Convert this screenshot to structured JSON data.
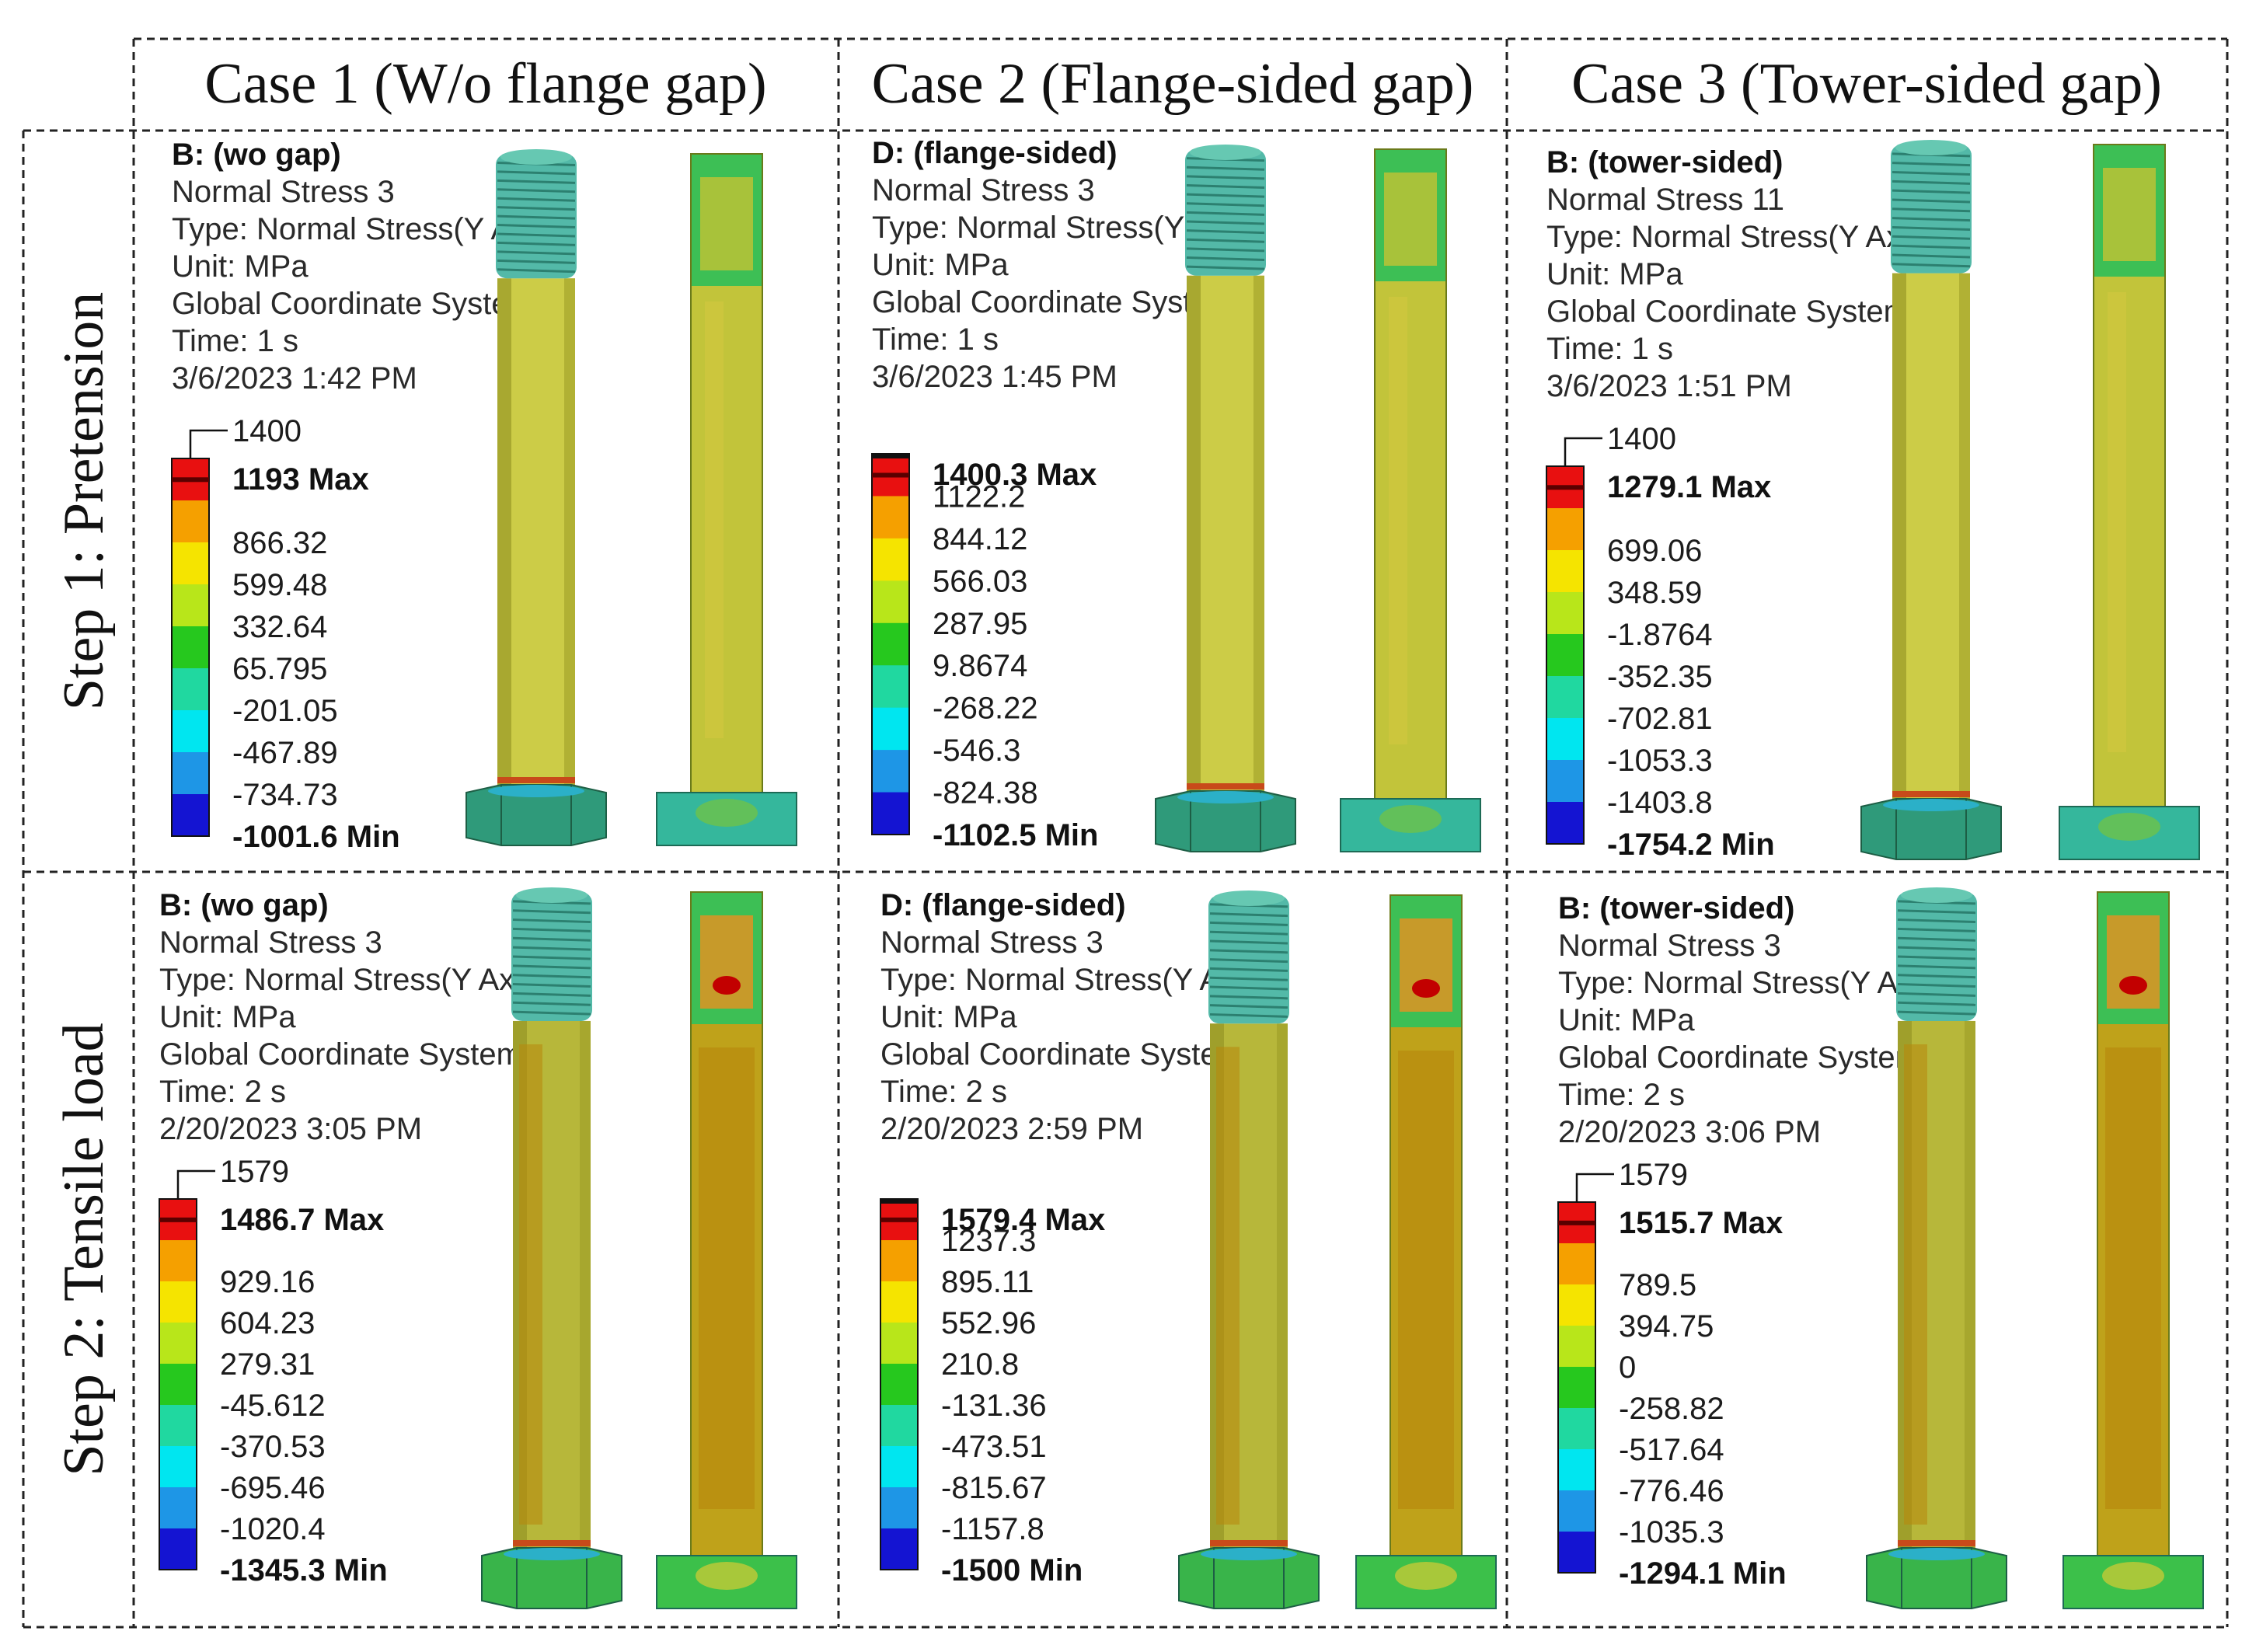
{
  "columns": [
    {
      "label": "Case 1 (W/o flange gap)"
    },
    {
      "label": "Case 2 (Flange-sided gap)"
    },
    {
      "label": "Case 3 (Tower-sided gap)"
    }
  ],
  "rows": [
    {
      "label": "Step 1: Pretension"
    },
    {
      "label": "Step 2: Tensile load"
    }
  ],
  "legend_colors": [
    "#e81010",
    "#f5a000",
    "#f5e400",
    "#b8e61a",
    "#26c81e",
    "#20d8a0",
    "#00e6f0",
    "#1e96e6",
    "#1414d2"
  ],
  "colors": {
    "shank": "#b7b73a",
    "shank_light": "#cccc47",
    "thread": "#53b9a8",
    "nut": "#2f9a7a",
    "tension": "#b8860b",
    "hot": "#c20000"
  },
  "panels": [
    {
      "id": "s1c1",
      "title": "B: (wo gap)",
      "result": "Normal Stress 3",
      "type": "Type: Normal Stress(Y Axis)",
      "unit": "Unit: MPa",
      "coord": "Global Coordinate System",
      "time": "Time: 1 s",
      "date": "3/6/2023 1:42 PM",
      "cap": "1400",
      "max": "1193 Max",
      "values": [
        "866.32",
        "599.48",
        "332.64",
        "65.795",
        "-201.05",
        "-467.89",
        "-734.73"
      ],
      "min": "-1001.6 Min"
    },
    {
      "id": "s1c2",
      "title": "D: (flange-sided)",
      "result": "Normal Stress 3",
      "type": "Type: Normal Stress(Y Axis)",
      "unit": "Unit: MPa",
      "coord": "Global Coordinate System",
      "time": "Time: 1 s",
      "date": "3/6/2023 1:45 PM",
      "max": "1400.3 Max",
      "values": [
        "1122.2",
        "844.12",
        "566.03",
        "287.95",
        "9.8674",
        "-268.22",
        "-546.3",
        "-824.38"
      ],
      "min": "-1102.5 Min"
    },
    {
      "id": "s1c3",
      "title": "B: (tower-sided)",
      "result": "Normal Stress 11",
      "type": "Type: Normal Stress(Y Axis)",
      "unit": "Unit: MPa",
      "coord": "Global Coordinate System",
      "time": "Time: 1 s",
      "date": "3/6/2023 1:51 PM",
      "cap": "1400",
      "max": "1279.1 Max",
      "values": [
        "699.06",
        "348.59",
        "-1.8764",
        "-352.35",
        "-702.81",
        "-1053.3",
        "-1403.8"
      ],
      "min": "-1754.2 Min"
    },
    {
      "id": "s2c1",
      "title": "B: (wo gap)",
      "result": "Normal Stress 3",
      "type": "Type: Normal Stress(Y Axis)",
      "unit": "Unit: MPa",
      "coord": "Global Coordinate System",
      "time": "Time: 2 s",
      "date": "2/20/2023 3:05 PM",
      "cap": "1579",
      "max": "1486.7 Max",
      "values": [
        "929.16",
        "604.23",
        "279.31",
        "-45.612",
        "-370.53",
        "-695.46",
        "-1020.4"
      ],
      "min": "-1345.3 Min"
    },
    {
      "id": "s2c2",
      "title": "D: (flange-sided)",
      "result": "Normal Stress 3",
      "type": "Type: Normal Stress(Y Axis)",
      "unit": "Unit: MPa",
      "coord": "Global Coordinate System",
      "time": "Time: 2 s",
      "date": "2/20/2023 2:59 PM",
      "max": "1579.4 Max",
      "values": [
        "1237.3",
        "895.11",
        "552.96",
        "210.8",
        "-131.36",
        "-473.51",
        "-815.67",
        "-1157.8"
      ],
      "min": "-1500 Min"
    },
    {
      "id": "s2c3",
      "title": "B: (tower-sided)",
      "result": "Normal Stress 3",
      "type": "Type: Normal Stress(Y Axis)",
      "unit": "Unit: MPa",
      "coord": "Global Coordinate System",
      "time": "Time: 2 s",
      "date": "2/20/2023 3:06 PM",
      "cap": "1579",
      "max": "1515.7 Max",
      "values": [
        "789.5",
        "394.75",
        "0",
        "-258.82",
        "-517.64",
        "-776.46",
        "-1035.3"
      ],
      "min": "-1294.1 Min"
    }
  ]
}
